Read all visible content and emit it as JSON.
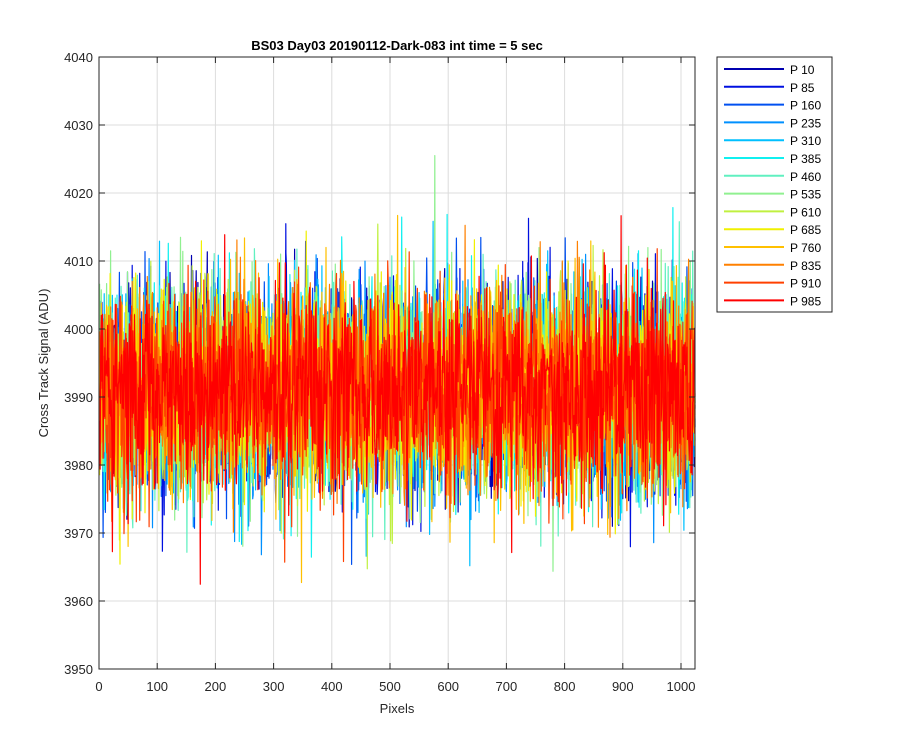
{
  "chart_data": {
    "type": "line",
    "title": "BS03 Day03 20190112-Dark-083 int time = 5 sec",
    "xlabel": "Pixels",
    "ylabel": "Cross Track Signal (ADU)",
    "xlim": [
      0,
      1024
    ],
    "ylim": [
      3950,
      4040
    ],
    "x_ticks": [
      0,
      100,
      200,
      300,
      400,
      500,
      600,
      700,
      800,
      900,
      1000
    ],
    "y_ticks": [
      3950,
      3960,
      3970,
      3980,
      3990,
      4000,
      4010,
      4020,
      4030,
      4040
    ],
    "grid": true,
    "legend_position": "outside-top-right",
    "trace_mean": 3991,
    "trace_std": 8,
    "trace_min_observed": 3957,
    "trace_max_observed": 4031,
    "series": [
      {
        "name": "P 10",
        "color": "#0000b0"
      },
      {
        "name": "P 85",
        "color": "#0010e0"
      },
      {
        "name": "P 160",
        "color": "#0050f0"
      },
      {
        "name": "P 235",
        "color": "#0090ff"
      },
      {
        "name": "P 310",
        "color": "#00c0ff"
      },
      {
        "name": "P 385",
        "color": "#10f0f0"
      },
      {
        "name": "P 460",
        "color": "#60f0c0"
      },
      {
        "name": "P 535",
        "color": "#90f090"
      },
      {
        "name": "P 610",
        "color": "#c0f040"
      },
      {
        "name": "P 685",
        "color": "#f0f000"
      },
      {
        "name": "P 760",
        "color": "#ffc000"
      },
      {
        "name": "P 835",
        "color": "#ff8000"
      },
      {
        "name": "P 910",
        "color": "#ff4000"
      },
      {
        "name": "P 985",
        "color": "#ff0000"
      }
    ]
  }
}
